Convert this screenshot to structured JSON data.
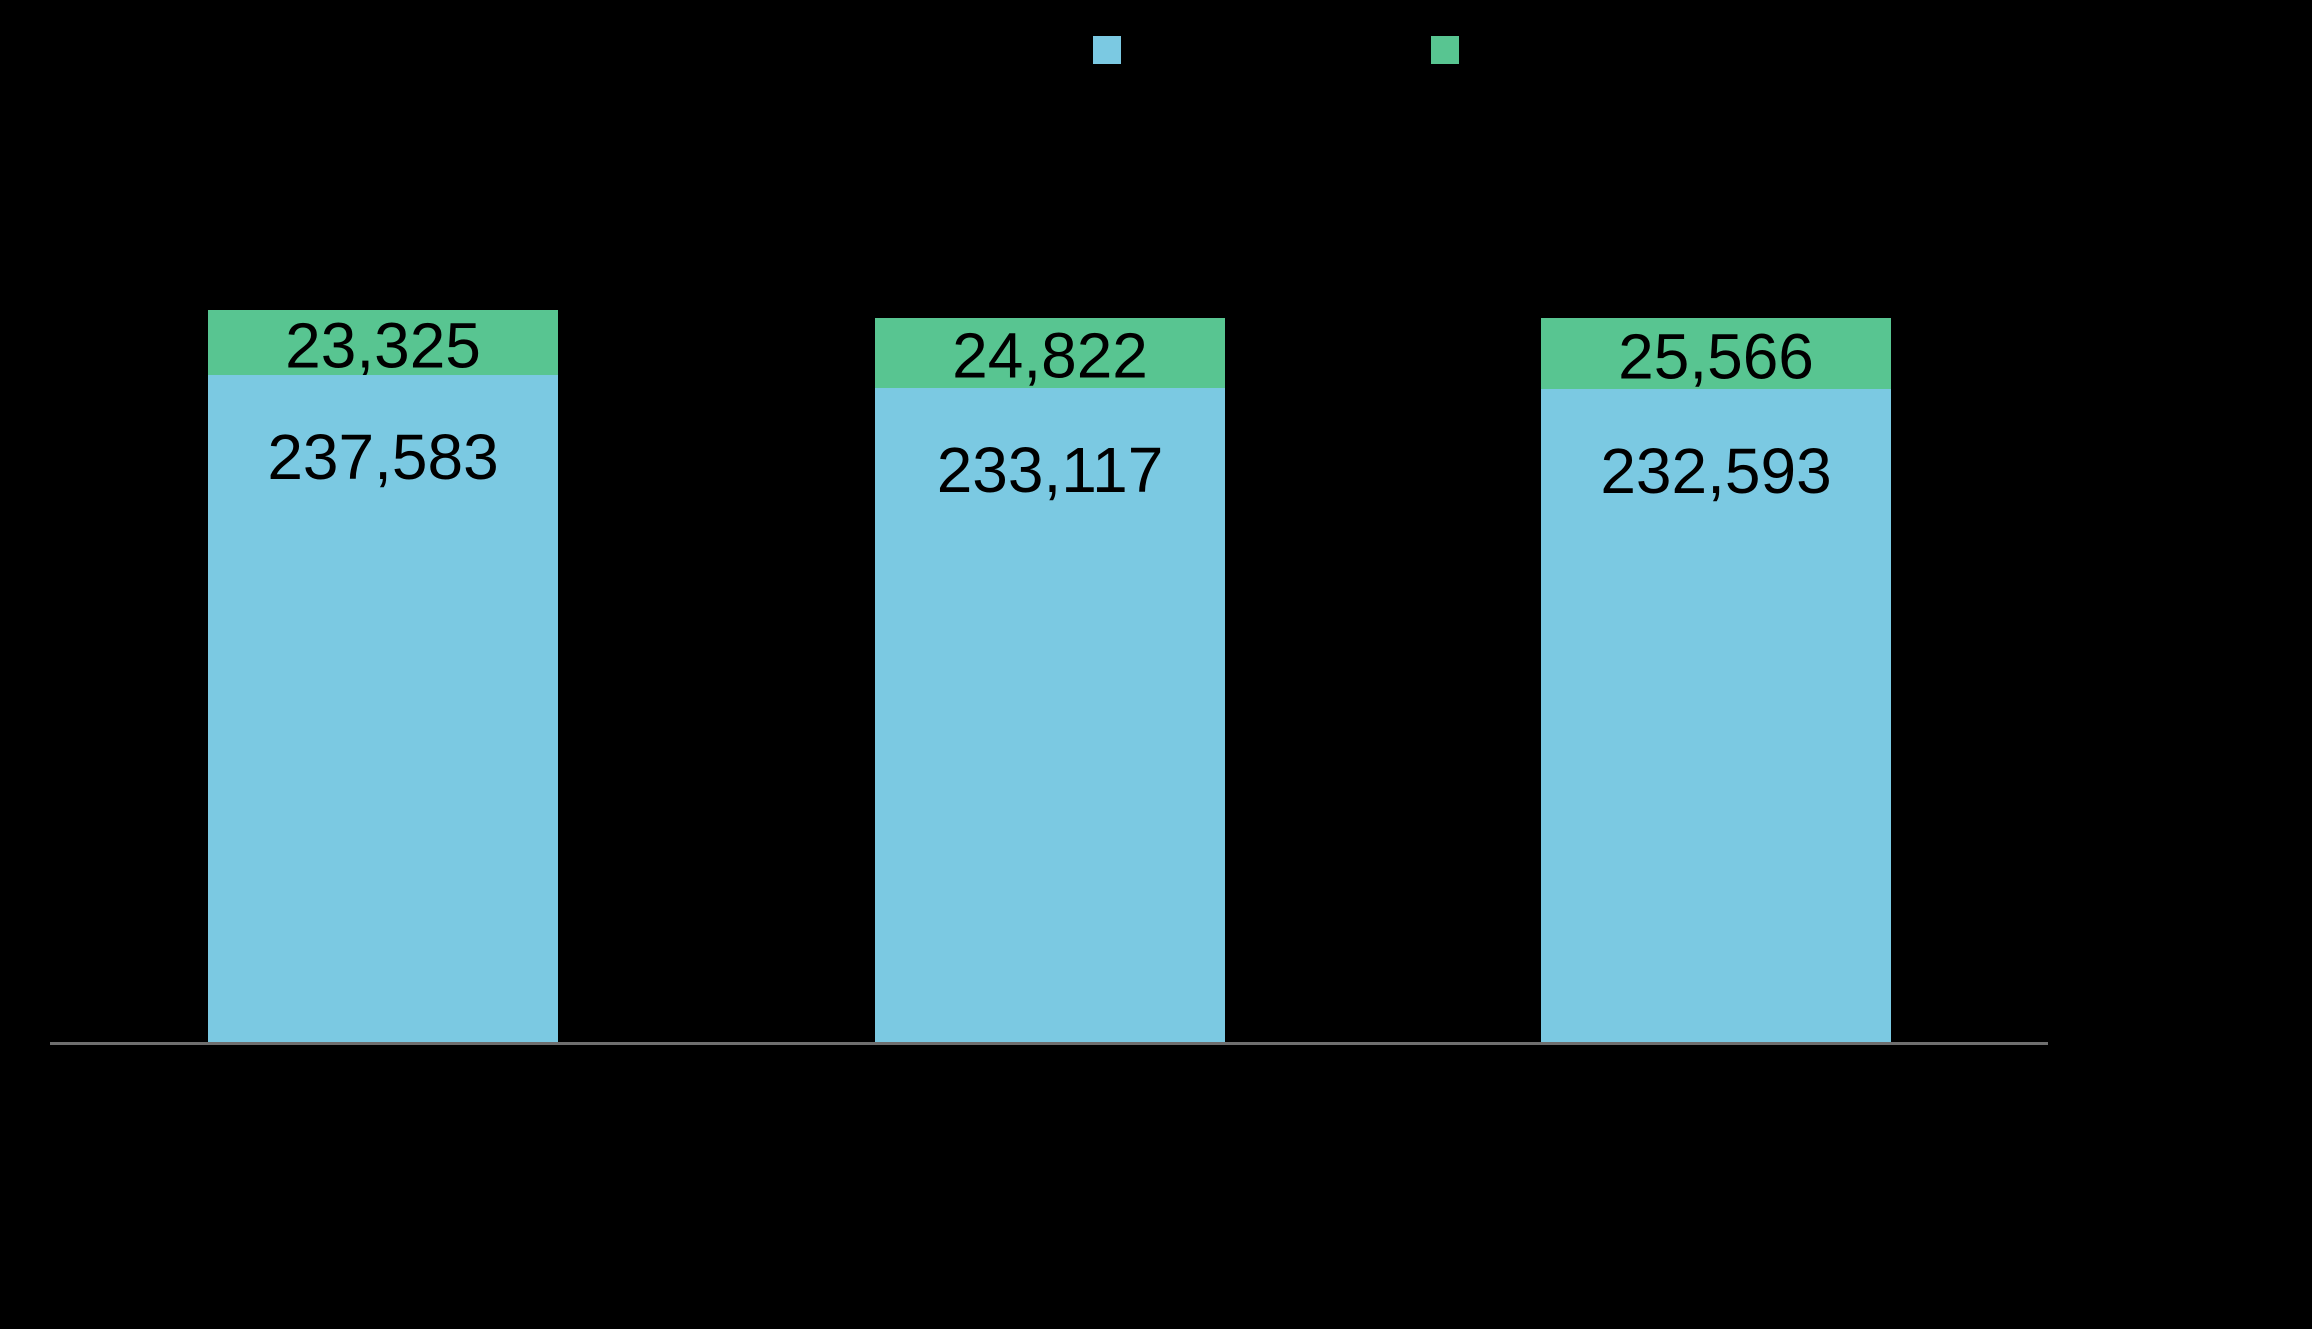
{
  "page": {
    "background": "#000000"
  },
  "legend": {
    "position": "top",
    "items": [
      {
        "series": "blue-series",
        "swatch_color": "#7BC9E2",
        "label": ""
      },
      {
        "series": "green-series",
        "swatch_color": "#58C591",
        "label": ""
      }
    ]
  },
  "chart_data": {
    "type": "bar",
    "subtype": "stacked-vertical",
    "title": "",
    "xlabel": "",
    "ylabel": "",
    "background": "#000000",
    "categories": [
      "",
      "",
      ""
    ],
    "series": [
      {
        "name": "blue-series",
        "color": "#7BC9E2",
        "values": [
          237583,
          233117,
          232593
        ],
        "data_labels": [
          "237,583",
          "233,117",
          "232,593"
        ],
        "label_color": "#000000",
        "label_placement": "inside-top"
      },
      {
        "name": "green-series",
        "color": "#58C591",
        "values": [
          23325,
          24822,
          25566
        ],
        "data_labels": [
          "23,325",
          "24,822",
          "25,566"
        ],
        "label_color": "#000000",
        "label_placement": "inside-center"
      }
    ],
    "stack_totals": [
      260908,
      257939,
      258159
    ],
    "x_axis": {
      "line_color": "#6F6F6F",
      "tick_labels_visible": false
    },
    "y_axis": {
      "visible": false,
      "gridlines": false
    },
    "legend_position": "top"
  }
}
